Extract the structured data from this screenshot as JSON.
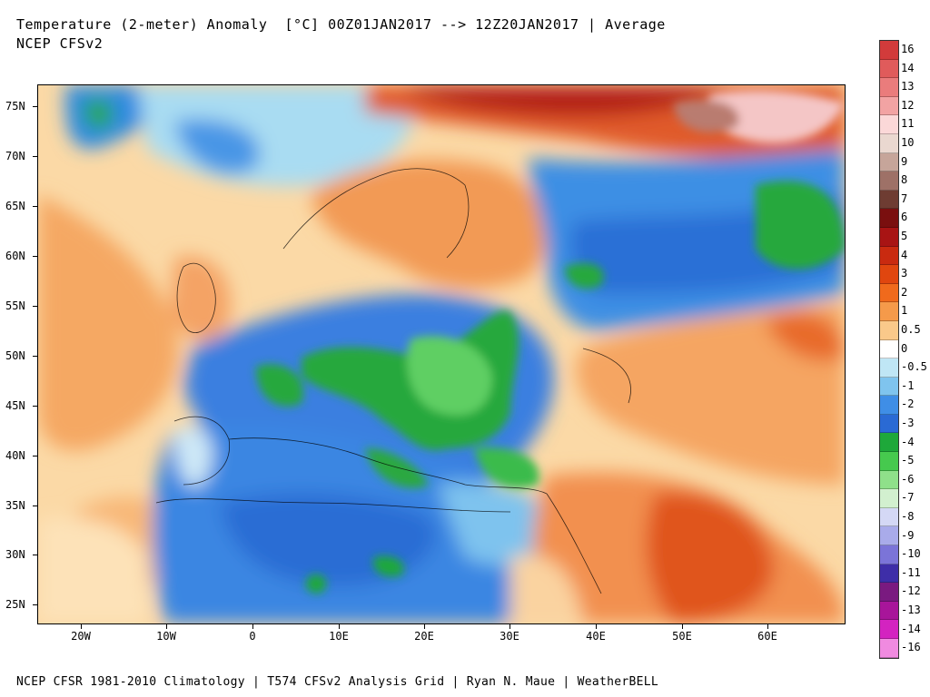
{
  "header": {
    "title_line1": "Temperature (2-meter) Anomaly  [°C] 00Z01JAN2017 --> 12Z20JAN2017 | Average",
    "title_line2": "NCEP CFSv2"
  },
  "footer": {
    "credit": "NCEP CFSR 1981-2010 Climatology | T574 CFSv2 Analysis Grid | Ryan N. Maue | WeatherBELL"
  },
  "map": {
    "lat_labels": [
      "75N",
      "70N",
      "65N",
      "60N",
      "55N",
      "50N",
      "45N",
      "40N",
      "35N",
      "30N",
      "25N"
    ],
    "lon_labels": [
      "20W",
      "10W",
      "0",
      "10E",
      "20E",
      "30E",
      "40E",
      "50E",
      "60E"
    ]
  },
  "colorbar": {
    "labels": [
      "16",
      "14",
      "13",
      "12",
      "11",
      "10",
      "9",
      "8",
      "7",
      "6",
      "5",
      "4",
      "3",
      "2",
      "1",
      "0.5",
      "0",
      "-0.5",
      "-1",
      "-2",
      "-3",
      "-4",
      "-5",
      "-6",
      "-7",
      "-8",
      "-9",
      "-10",
      "-11",
      "-12",
      "-13",
      "-14",
      "-16"
    ],
    "colors": [
      "#d23b3b",
      "#e05b5b",
      "#ea7c7c",
      "#f2a3a3",
      "#fbd8d8",
      "#ead8d0",
      "#c6a59a",
      "#9e7167",
      "#6e3c32",
      "#7a0f0f",
      "#a81414",
      "#c92a10",
      "#e0460f",
      "#f06a1c",
      "#f59a4a",
      "#fac98a",
      "#ffffff",
      "#bfe6f5",
      "#7fc4ee",
      "#3f8ee6",
      "#2a6ad4",
      "#1ea83a",
      "#46c94e",
      "#8fe08a",
      "#d2f0cf",
      "#d4d8f5",
      "#a9abea",
      "#7b74d8",
      "#3e2ea8",
      "#7a1a80",
      "#a8159a",
      "#d323c0",
      "#f08ae0"
    ]
  }
}
